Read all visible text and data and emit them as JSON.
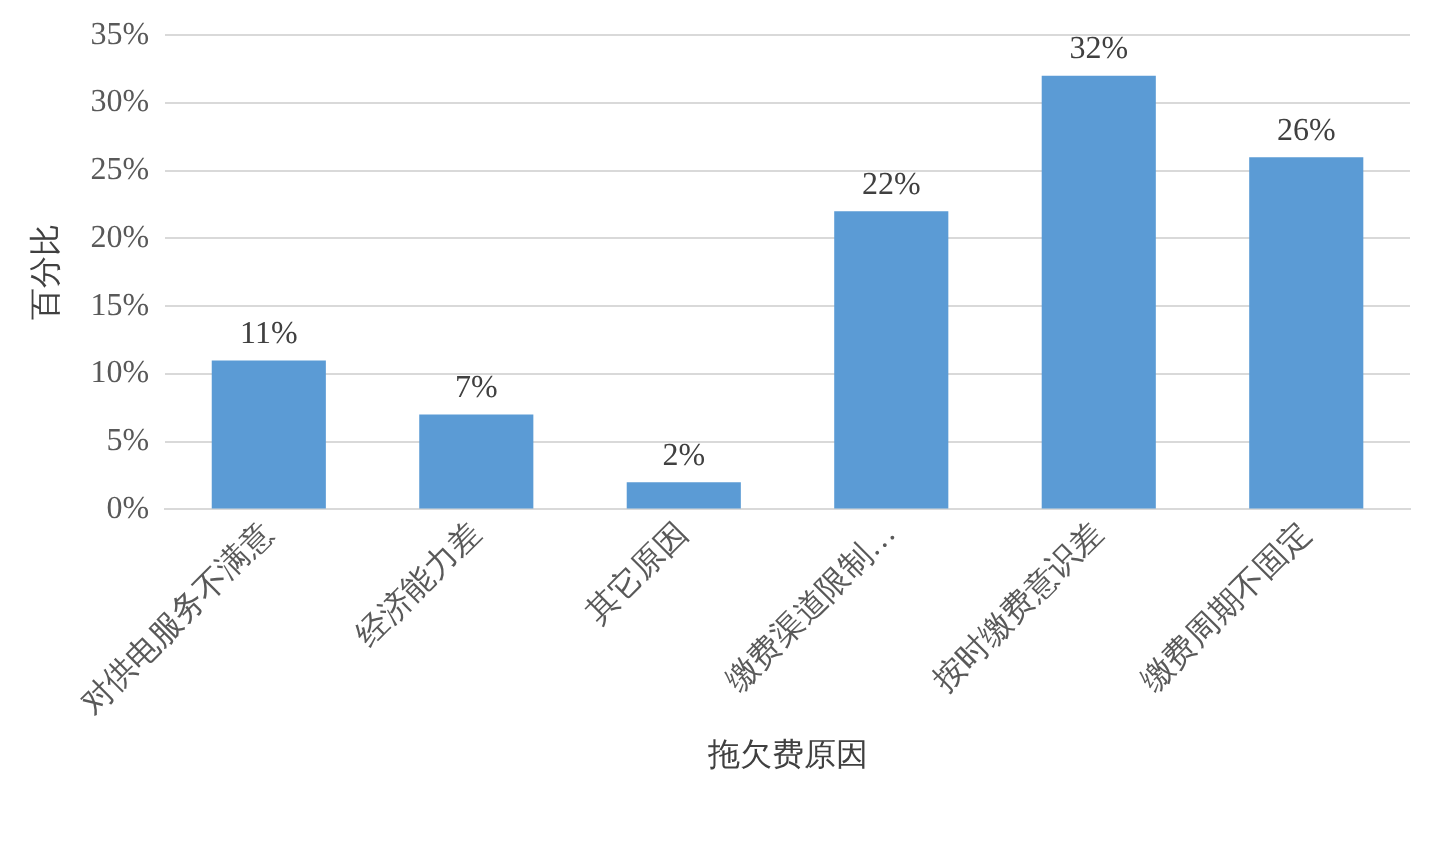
{
  "chart_data": {
    "type": "bar",
    "xlabel": "拖欠费原因",
    "ylabel": "百分比",
    "categories": [
      "对供电服务不满意",
      "经济能力差",
      "其它原因",
      "缴费渠道限制…",
      "按时缴费意识差",
      "缴费周期不固定"
    ],
    "values": [
      11,
      7,
      2,
      22,
      32,
      26
    ],
    "value_labels": [
      "11%",
      "7%",
      "2%",
      "22%",
      "32%",
      "26%"
    ],
    "color": "#5b9bd5",
    "ylim": [
      0,
      35
    ],
    "yticks": [
      {
        "value": 0,
        "label": "0%"
      },
      {
        "value": 5,
        "label": "5%"
      },
      {
        "value": 10,
        "label": "10%"
      },
      {
        "value": 15,
        "label": "15%"
      },
      {
        "value": 20,
        "label": "20%"
      },
      {
        "value": 25,
        "label": "25%"
      },
      {
        "value": 30,
        "label": "30%"
      },
      {
        "value": 35,
        "label": "35%"
      }
    ],
    "grid": "y",
    "legend": false
  }
}
